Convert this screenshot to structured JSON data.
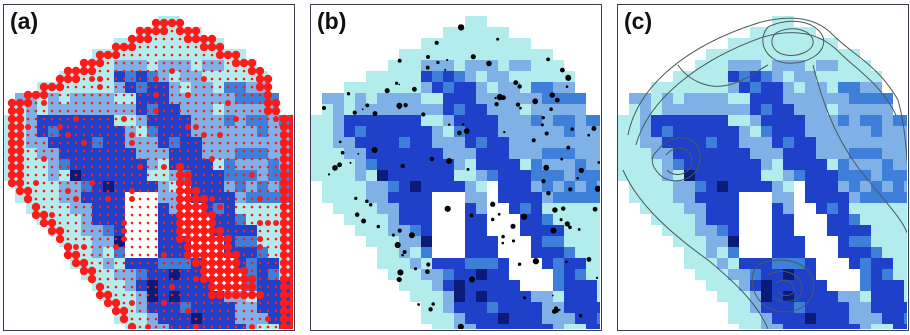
{
  "panels": [
    {
      "label": "(a)",
      "overlay": "dots"
    },
    {
      "label": "(b)",
      "overlay": "black-dots"
    },
    {
      "label": "(c)",
      "overlay": "contours"
    }
  ],
  "colors": {
    "light": "#b3ecec",
    "mid": "#7fb0e6",
    "med": "#3d7fd9",
    "dark": "#1f40c8",
    "darkest": "#0c1a78",
    "red_dots": "#ff1a1a",
    "black_dots": "#000000",
    "contour": "#4a5a5a",
    "frame": "#3c3c50"
  }
}
